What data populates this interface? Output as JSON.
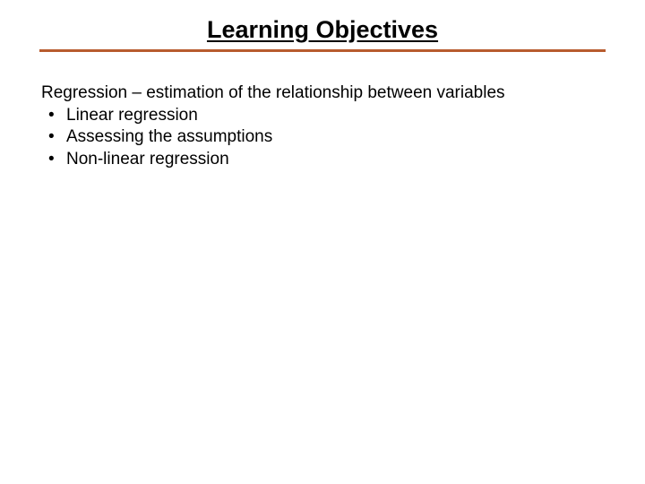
{
  "slide": {
    "title": "Learning Objectives",
    "intro": "Regression – estimation of the relationship between variables",
    "bullets": [
      "Linear regression",
      "Assessing the assumptions",
      "Non-linear regression"
    ],
    "divider_color": "#b85c2e",
    "title_fontsize": 27,
    "body_fontsize": 19,
    "background_color": "#ffffff",
    "text_color": "#000000"
  }
}
